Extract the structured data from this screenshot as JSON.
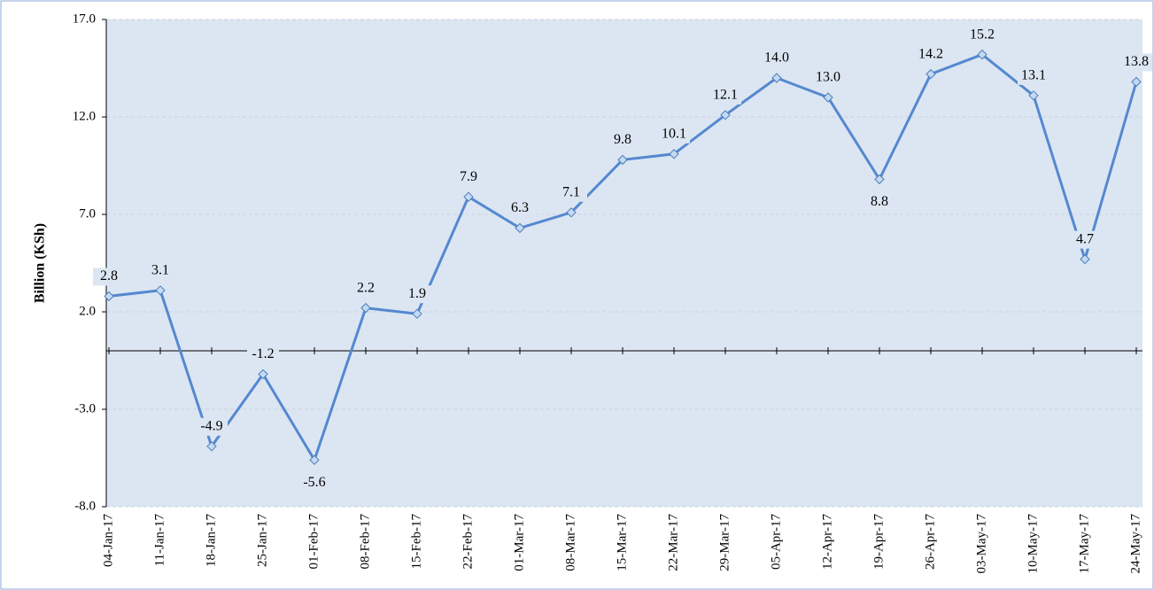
{
  "chart_data": {
    "type": "line",
    "y_label": "Billion (KSh)",
    "categories": [
      "04-Jan-17",
      "11-Jan-17",
      "18-Jan-17",
      "25-Jan-17",
      "01-Feb-17",
      "08-Feb-17",
      "15-Feb-17",
      "22-Feb-17",
      "01-Mar-17",
      "08-Mar-17",
      "15-Mar-17",
      "22-Mar-17",
      "29-Mar-17",
      "05-Apr-17",
      "12-Apr-17",
      "19-Apr-17",
      "26-Apr-17",
      "03-May-17",
      "10-May-17",
      "17-May-17",
      "24-May-17"
    ],
    "values": [
      2.8,
      3.1,
      -4.9,
      -1.2,
      -5.6,
      2.2,
      1.9,
      7.9,
      6.3,
      7.1,
      9.8,
      10.1,
      12.1,
      14.0,
      13.0,
      8.8,
      14.2,
      15.2,
      13.1,
      4.7,
      13.8
    ],
    "value_labels": [
      "2.8",
      "3.1",
      "-4.9",
      "-1.2",
      "-5.6",
      "2.2",
      "1.9",
      "7.9",
      "6.3",
      "7.1",
      "9.8",
      "10.1",
      "12.1",
      "14.0",
      "13.0",
      "8.8",
      "14.2",
      "15.2",
      "13.1",
      "4.7",
      "13.8"
    ],
    "color": "#5588d0",
    "ylim": [
      -8,
      17
    ],
    "yticks": [
      {
        "value": -8,
        "label": "-8.0"
      },
      {
        "value": -3,
        "label": "-3.0"
      },
      {
        "value": 2,
        "label": "2.0"
      },
      {
        "value": 7,
        "label": "7.0"
      },
      {
        "value": 12,
        "label": "12.0"
      },
      {
        "value": 17,
        "label": "17.0"
      }
    ],
    "grid": true
  }
}
